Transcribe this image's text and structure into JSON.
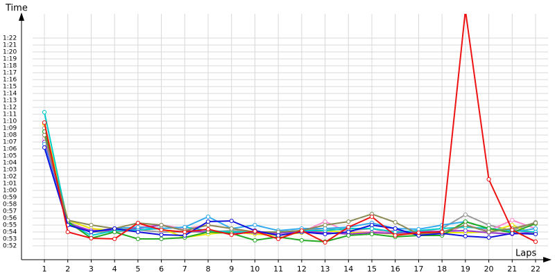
{
  "chart_data": {
    "type": "line",
    "y_label": "Time",
    "x_label": "Laps",
    "grid": true,
    "categories": [
      "1",
      "2",
      "3",
      "4",
      "5",
      "6",
      "7",
      "8",
      "9",
      "10",
      "11",
      "12",
      "13",
      "14",
      "15",
      "16",
      "17",
      "18",
      "19",
      "20",
      "21",
      "22"
    ],
    "ylim": [
      50,
      85.5
    ],
    "yticks": [
      {
        "value": 52,
        "label": "0:52"
      },
      {
        "value": 53,
        "label": "0:53"
      },
      {
        "value": 54,
        "label": "0:54"
      },
      {
        "value": 55,
        "label": "0:55"
      },
      {
        "value": 56,
        "label": "0:56"
      },
      {
        "value": 57,
        "label": "0:57"
      },
      {
        "value": 58,
        "label": "0:58"
      },
      {
        "value": 59,
        "label": "0:59"
      },
      {
        "value": 60,
        "label": "1:00"
      },
      {
        "value": 61,
        "label": "1:01"
      },
      {
        "value": 62,
        "label": "1:02"
      },
      {
        "value": 63,
        "label": "1:03"
      },
      {
        "value": 64,
        "label": "1:04"
      },
      {
        "value": 65,
        "label": "1:05"
      },
      {
        "value": 66,
        "label": "1:06"
      },
      {
        "value": 67,
        "label": "1:07"
      },
      {
        "value": 68,
        "label": "1:08"
      },
      {
        "value": 69,
        "label": "1:09"
      },
      {
        "value": 70,
        "label": "1:10"
      },
      {
        "value": 71,
        "label": "1:11"
      },
      {
        "value": 72,
        "label": "1:12"
      },
      {
        "value": 73,
        "label": "1:13"
      },
      {
        "value": 74,
        "label": "1:14"
      },
      {
        "value": 75,
        "label": "1:15"
      },
      {
        "value": 76,
        "label": "1:16"
      },
      {
        "value": 77,
        "label": "1:17"
      },
      {
        "value": 78,
        "label": "1:18"
      },
      {
        "value": 79,
        "label": "1:19"
      },
      {
        "value": 80,
        "label": "1:20"
      },
      {
        "value": 81,
        "label": "1:21"
      },
      {
        "value": 82,
        "label": "1:22"
      }
    ],
    "series": [
      {
        "color": "#9a9a9a",
        "values": [
          69,
          55.5,
          54,
          54,
          54.3,
          54,
          54,
          54,
          54.2,
          54,
          54,
          54.2,
          54.5,
          54.2,
          54.5,
          53.8,
          54,
          54.5,
          56.5,
          55,
          54.2,
          55.4
        ]
      },
      {
        "color": "#ff88cc",
        "values": [
          67.5,
          55.3,
          54.2,
          54.5,
          54.7,
          55,
          54.5,
          55,
          54.5,
          54,
          53.5,
          54,
          55.5,
          54,
          54,
          54.2,
          53.8,
          53.5,
          55,
          54.2,
          55.7,
          54.5
        ]
      },
      {
        "color": "#e8e800",
        "values": [
          69.6,
          55.7,
          54.5,
          54.2,
          54.7,
          54.5,
          53.2,
          53.7,
          54,
          53.7,
          53.5,
          53.9,
          54.2,
          53.9,
          53.9,
          53.7,
          53.7,
          53.9,
          53.9,
          54,
          55,
          53.7
        ]
      },
      {
        "color": "#9933cc",
        "values": [
          67,
          55.2,
          54.2,
          54.2,
          54.5,
          55,
          54.2,
          54,
          53.9,
          53.9,
          53.8,
          54.1,
          53.9,
          53.7,
          53.9,
          53.8,
          54,
          54.1,
          54.2,
          53.9,
          53.7,
          54
        ]
      },
      {
        "color": "#00cccc",
        "values": [
          71.3,
          55.3,
          53.5,
          54.2,
          54.3,
          54.5,
          54.7,
          54.2,
          54,
          54,
          54,
          54.2,
          54.2,
          54.5,
          54.5,
          54,
          54.2,
          54.5,
          54.7,
          54.5,
          54.2,
          54
        ]
      },
      {
        "color": "#33aaee",
        "values": [
          66.7,
          55,
          54,
          54.5,
          54.7,
          54.5,
          54.7,
          56.2,
          54.5,
          55,
          54.2,
          54.5,
          54.5,
          54.7,
          55.3,
          54.5,
          54.4,
          55,
          55.5,
          54.5,
          54,
          54.5
        ]
      },
      {
        "color": "#22aa22",
        "values": [
          68.5,
          55.5,
          53.1,
          54,
          53,
          53,
          53.2,
          54,
          53.8,
          52.8,
          53.3,
          52.8,
          52.6,
          53.5,
          53.7,
          53.3,
          53.5,
          53.5,
          55.5,
          54.5,
          53.9,
          55.2
        ]
      },
      {
        "color": "#8a8a55",
        "values": [
          68,
          55.7,
          55,
          54.5,
          55.3,
          55,
          54.2,
          55,
          54.5,
          54,
          54,
          54.2,
          55,
          55.5,
          56.6,
          55.4,
          53.7,
          54,
          55,
          54,
          54.5,
          55.3
        ]
      },
      {
        "color": "#1111dd",
        "values": [
          66.2,
          55,
          54,
          54.5,
          54,
          53.6,
          53.5,
          55.5,
          55.6,
          54.2,
          53.5,
          54,
          53.7,
          54,
          55,
          54.5,
          53.5,
          53.8,
          53.4,
          53.2,
          53.8,
          53.7
        ]
      },
      {
        "color": "#ee1111",
        "values": [
          69.8,
          54,
          53.1,
          53,
          55.3,
          54.3,
          54,
          54.4,
          53.6,
          54.1,
          53,
          54.2,
          52.5,
          54.7,
          56.2,
          53.5,
          53.9,
          54,
          86,
          61.6,
          54.3,
          52.6
        ]
      }
    ]
  }
}
